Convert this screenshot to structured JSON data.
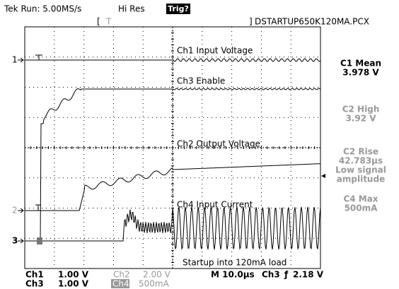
{
  "header": {
    "run": "Tek Run: 5.00MS/s",
    "mode": "Hi Res",
    "trigger": "Trig?",
    "file": "DSTARTUP650K120MA.PCX"
  },
  "traces": {
    "ch1": "Ch1 Input Voltage",
    "ch3": "Ch3 Enable",
    "ch2": "Ch2 Output Voltage",
    "ch4": "Ch4 Input Current",
    "note": "Startup into 120mA load"
  },
  "markers": {
    "ch1": "1",
    "ch2": "2",
    "ch3": "3"
  },
  "measurements": [
    {
      "label": "C1 Mean",
      "lines": [
        "3.978 V"
      ]
    },
    {
      "label": "C2 High",
      "lines": [
        "3.92 V"
      ]
    },
    {
      "label": "C2 Rise",
      "lines": [
        "42.783µs",
        "Low signal",
        "amplitude"
      ]
    },
    {
      "label": "C4 Max",
      "lines": [
        "500mA"
      ]
    }
  ],
  "settings": {
    "ch1": "Ch1",
    "ch1_scale": "1.00 V",
    "ch2": "Ch2",
    "ch2_scale": "2.00 V",
    "timebase": "M 10.0µs",
    "trig_src": "Ch3",
    "trig_level": "2.18 V",
    "ch3": "Ch3",
    "ch3_scale": "1.00 V",
    "ch4": "Ch4",
    "ch4_scale": "500mA"
  }
}
